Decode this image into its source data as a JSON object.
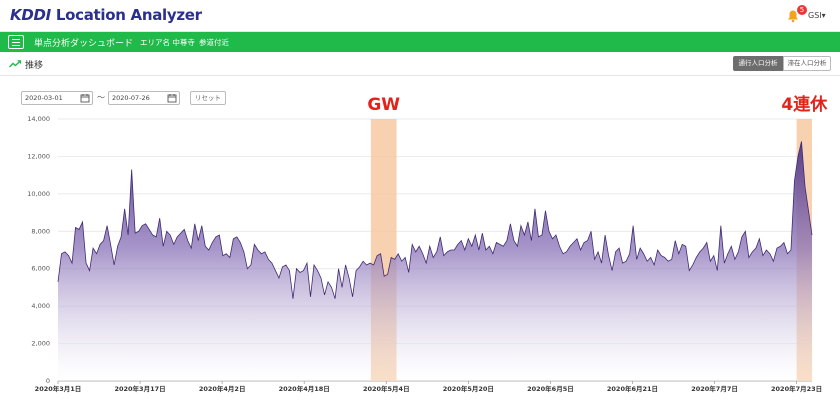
{
  "header": {
    "logo_brand": "KDDI",
    "logo_rest": " Location Analyzer",
    "notification_count": "5",
    "user": "GSI▾"
  },
  "nav": {
    "title": "単点分析ダッシュボード",
    "area": "エリア名 中尊寺",
    "subarea": "参道付近"
  },
  "section": {
    "title": "推移",
    "tabs": [
      {
        "label": "通行人口分析",
        "active": true
      },
      {
        "label": "滞在人口分析",
        "active": false
      }
    ]
  },
  "filters": {
    "start_date": "2020-03-01",
    "end_date": "2020-07-26",
    "separator": "～",
    "reset_label": "リセット"
  },
  "colors": {
    "brand": "#2b2f8e",
    "nav_green": "#1fba4a",
    "series": "#5b3f8f",
    "highlight": "#f6c9a2",
    "annotation": "#e3231b"
  },
  "chart_data": {
    "type": "area",
    "ylim": [
      0,
      14000
    ],
    "yticks": [
      "0",
      "2,000",
      "4,000",
      "6,000",
      "8,000",
      "10,000",
      "12,000",
      "14,000"
    ],
    "xticks": [
      "2020年3月1日",
      "2020年3月17日",
      "2020年4月2日",
      "2020年4月18日",
      "2020年5月4日",
      "2020年5月20日",
      "2020年6月5日",
      "2020年6月21日",
      "2020年7月7日",
      "2020年7月23日"
    ],
    "x_start": "2020-03-01",
    "x_end": "2020-07-26",
    "values": [
      5300,
      6800,
      6900,
      6700,
      6300,
      8200,
      8100,
      8500,
      6300,
      5900,
      7100,
      6800,
      7300,
      7500,
      8300,
      7300,
      6200,
      7200,
      7700,
      9200,
      7800,
      11300,
      7900,
      8000,
      8300,
      8400,
      8100,
      7800,
      7700,
      8700,
      7200,
      8000,
      7800,
      7300,
      7700,
      7900,
      8100,
      7500,
      7100,
      8400,
      7500,
      8300,
      7200,
      7000,
      7400,
      7700,
      7800,
      6700,
      6800,
      6600,
      7600,
      7700,
      7400,
      6900,
      6000,
      6200,
      7300,
      7000,
      6800,
      6900,
      6500,
      6300,
      5900,
      5500,
      6100,
      6200,
      5900,
      4400,
      6000,
      5800,
      5900,
      6300,
      4500,
      6200,
      5900,
      5500,
      4600,
      5300,
      5000,
      4400,
      6000,
      5000,
      6200,
      5500,
      4500,
      5900,
      6100,
      6400,
      6200,
      6300,
      6200,
      6700,
      6800,
      5600,
      5700,
      6600,
      6500,
      6800,
      6400,
      6600,
      5800,
      7300,
      6900,
      7200,
      6800,
      6300,
      7200,
      6600,
      6900,
      7700,
      6700,
      6900,
      7000,
      7000,
      7300,
      7500,
      7000,
      7600,
      7200,
      7800,
      7000,
      7900,
      7000,
      7200,
      6800,
      7400,
      7300,
      7200,
      7500,
      8400,
      7500,
      7200,
      8300,
      7800,
      8500,
      7500,
      9200,
      7700,
      7800,
      9100,
      8000,
      7600,
      7800,
      7200,
      6800,
      6900,
      7200,
      7400,
      7600,
      7000,
      7400,
      7500,
      8000,
      6500,
      6900,
      6300,
      7800,
      6700,
      5900,
      6900,
      7100,
      6300,
      6400,
      6800,
      8300,
      6500,
      7100,
      6800,
      6400,
      6600,
      6200,
      7000,
      6700,
      6600,
      6400,
      6500,
      7500,
      6800,
      7300,
      7200,
      5900,
      6200,
      6600,
      6900,
      7100,
      7400,
      6400,
      6700,
      5900,
      8300,
      6300,
      6800,
      7200,
      6500,
      6900,
      7700,
      8000,
      6600,
      6900,
      7100,
      7600,
      6700,
      7000,
      6800,
      6400,
      7100,
      7200,
      7400,
      6800,
      7000,
      10700,
      12000,
      12800,
      10400,
      9100,
      7800
    ],
    "highlights": [
      {
        "label": "GW",
        "start": "2020-05-01",
        "end": "2020-05-06"
      },
      {
        "label": "4連休",
        "start": "2020-07-23",
        "end": "2020-07-26"
      }
    ]
  }
}
